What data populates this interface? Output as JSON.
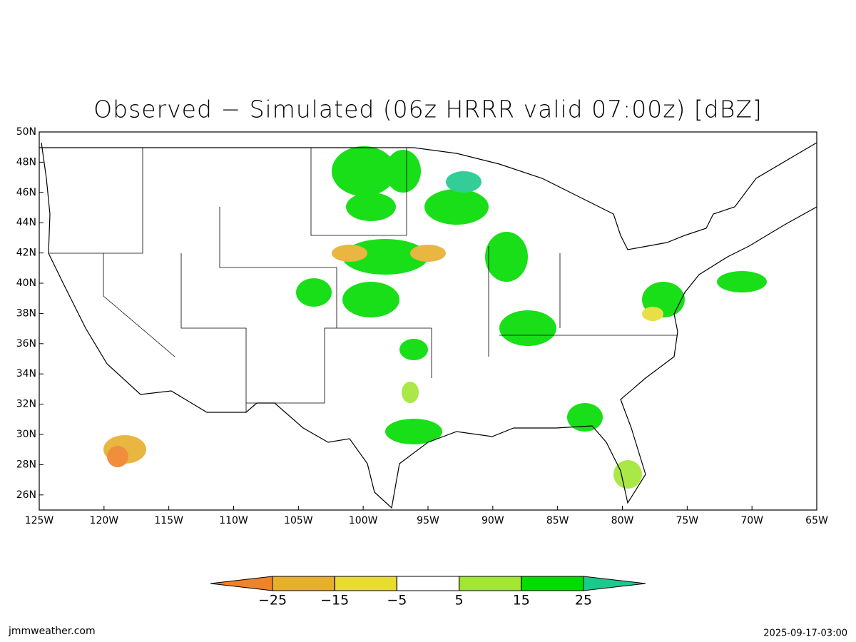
{
  "title": "Observed − Simulated (06z HRRR valid 07:00z) [dBZ]",
  "map": {
    "lon_range": [
      -125,
      -65
    ],
    "lat_range": [
      25,
      50
    ],
    "lon_ticks": [
      {
        "value": -125,
        "label": "125W"
      },
      {
        "value": -120,
        "label": "120W"
      },
      {
        "value": -115,
        "label": "115W"
      },
      {
        "value": -110,
        "label": "110W"
      },
      {
        "value": -105,
        "label": "105W"
      },
      {
        "value": -100,
        "label": "100W"
      },
      {
        "value": -95,
        "label": "95W"
      },
      {
        "value": -90,
        "label": "90W"
      },
      {
        "value": -85,
        "label": "85W"
      },
      {
        "value": -80,
        "label": "80W"
      },
      {
        "value": -75,
        "label": "75W"
      },
      {
        "value": -70,
        "label": "70W"
      },
      {
        "value": -65,
        "label": "65W"
      }
    ],
    "lat_ticks": [
      {
        "value": 26,
        "label": "26N"
      },
      {
        "value": 28,
        "label": "28N"
      },
      {
        "value": 30,
        "label": "30N"
      },
      {
        "value": 32,
        "label": "32N"
      },
      {
        "value": 34,
        "label": "34N"
      },
      {
        "value": 36,
        "label": "36N"
      },
      {
        "value": 38,
        "label": "38N"
      },
      {
        "value": 40,
        "label": "40N"
      },
      {
        "value": 42,
        "label": "42N"
      },
      {
        "value": 44,
        "label": "44N"
      },
      {
        "value": 46,
        "label": "46N"
      },
      {
        "value": 48,
        "label": "48N"
      },
      {
        "value": 50,
        "label": "50N"
      }
    ]
  },
  "colorbar": {
    "ticks": [
      {
        "value": -25,
        "label": "−25"
      },
      {
        "value": -15,
        "label": "−15"
      },
      {
        "value": -5,
        "label": "−5"
      },
      5,
      15,
      25
    ],
    "colors": [
      "#f08228",
      "#e6af2d",
      "#e6dc32",
      "#ffffff",
      "#a0e632",
      "#00dc00",
      "#1ec88c"
    ]
  },
  "footer": {
    "source": "jmmweather.com",
    "timestamp": "2025-09-17-03:00"
  }
}
